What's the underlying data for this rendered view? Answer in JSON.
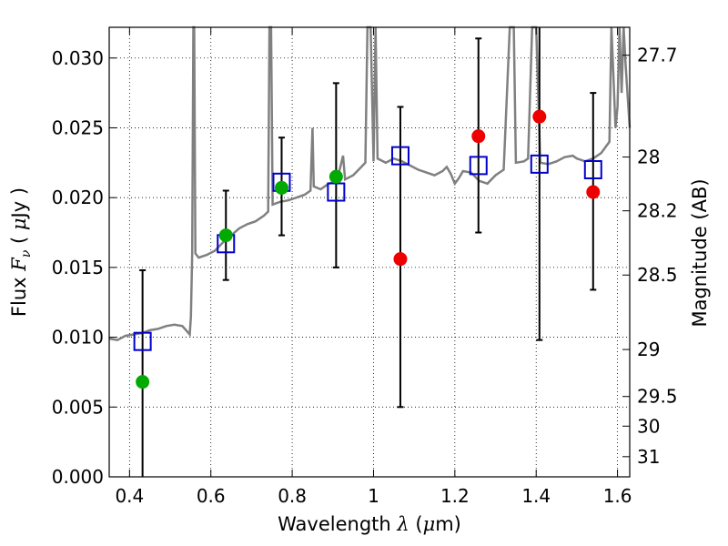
{
  "chart_data": {
    "type": "scatter",
    "xlabel": "Wavelength  λ (μm)",
    "xlabel_parts": {
      "text": "Wavelength  ",
      "symbol": "λ",
      "unit_open": " (",
      "mu": "μ",
      "unit_close": "m)"
    },
    "ylabel": "Flux  Fν  ( μJy )",
    "ylabel_parts": {
      "text": "Flux  ",
      "symbol": "F",
      "subscript": "ν",
      "unit_open": "  ( ",
      "mu": "μ",
      "unit_close": "Jy )"
    },
    "y2label": "Magnitude (AB)",
    "xlim": [
      0.35,
      1.63
    ],
    "ylim": [
      0,
      0.0322
    ],
    "grid": true,
    "x_ticks": [
      {
        "value": 0.4,
        "label": "0.4"
      },
      {
        "value": 0.6,
        "label": "0.6"
      },
      {
        "value": 0.8,
        "label": "0.8"
      },
      {
        "value": 1.0,
        "label": "1"
      },
      {
        "value": 1.2,
        "label": "1.2"
      },
      {
        "value": 1.4,
        "label": "1.4"
      },
      {
        "value": 1.6,
        "label": "1.6"
      }
    ],
    "y_ticks": [
      {
        "value": 0.0,
        "label": "0.000"
      },
      {
        "value": 0.005,
        "label": "0.005"
      },
      {
        "value": 0.01,
        "label": "0.010"
      },
      {
        "value": 0.015,
        "label": "0.015"
      },
      {
        "value": 0.02,
        "label": "0.020"
      },
      {
        "value": 0.025,
        "label": "0.025"
      },
      {
        "value": 0.03,
        "label": "0.030"
      }
    ],
    "y2_ticks": [
      {
        "value": 27.7,
        "label": "27.7"
      },
      {
        "value": 28,
        "label": "28"
      },
      {
        "value": 28.2,
        "label": "28.2"
      },
      {
        "value": 28.5,
        "label": "28.5"
      },
      {
        "value": 29,
        "label": "29"
      },
      {
        "value": 29.5,
        "label": "29.5"
      },
      {
        "value": 30,
        "label": "30"
      },
      {
        "value": 31,
        "label": "31"
      }
    ],
    "sed_model": {
      "color": "#808080",
      "points": [
        [
          0.35,
          0.0099
        ],
        [
          0.37,
          0.0098
        ],
        [
          0.39,
          0.0101
        ],
        [
          0.41,
          0.0102
        ],
        [
          0.43,
          0.0103
        ],
        [
          0.45,
          0.0105
        ],
        [
          0.47,
          0.0106
        ],
        [
          0.49,
          0.0108
        ],
        [
          0.51,
          0.0109
        ],
        [
          0.53,
          0.0108
        ],
        [
          0.548,
          0.0102
        ],
        [
          0.551,
          0.0115
        ],
        [
          0.554,
          0.016
        ],
        [
          0.557,
          0.0322
        ],
        [
          0.559,
          0.0322
        ],
        [
          0.562,
          0.016
        ],
        [
          0.57,
          0.0157
        ],
        [
          0.59,
          0.0159
        ],
        [
          0.61,
          0.0162
        ],
        [
          0.63,
          0.0168
        ],
        [
          0.65,
          0.0173
        ],
        [
          0.67,
          0.0178
        ],
        [
          0.69,
          0.0181
        ],
        [
          0.71,
          0.0183
        ],
        [
          0.73,
          0.0187
        ],
        [
          0.741,
          0.019
        ],
        [
          0.744,
          0.0322
        ],
        [
          0.748,
          0.0322
        ],
        [
          0.752,
          0.0195
        ],
        [
          0.77,
          0.0197
        ],
        [
          0.79,
          0.0198
        ],
        [
          0.81,
          0.02
        ],
        [
          0.83,
          0.0202
        ],
        [
          0.845,
          0.0205
        ],
        [
          0.85,
          0.025
        ],
        [
          0.853,
          0.0208
        ],
        [
          0.87,
          0.0206
        ],
        [
          0.89,
          0.021
        ],
        [
          0.91,
          0.0212
        ],
        [
          0.925,
          0.023
        ],
        [
          0.93,
          0.0213
        ],
        [
          0.95,
          0.0216
        ],
        [
          0.97,
          0.0222
        ],
        [
          0.98,
          0.0225
        ],
        [
          0.985,
          0.0322
        ],
        [
          0.993,
          0.0322
        ],
        [
          1.0,
          0.0226
        ],
        [
          1.005,
          0.0322
        ],
        [
          1.01,
          0.0228
        ],
        [
          1.03,
          0.0225
        ],
        [
          1.05,
          0.0228
        ],
        [
          1.07,
          0.0226
        ],
        [
          1.09,
          0.0223
        ],
        [
          1.11,
          0.022
        ],
        [
          1.13,
          0.0218
        ],
        [
          1.15,
          0.0216
        ],
        [
          1.17,
          0.0219
        ],
        [
          1.18,
          0.0222
        ],
        [
          1.19,
          0.0217
        ],
        [
          1.2,
          0.021
        ],
        [
          1.21,
          0.0214
        ],
        [
          1.22,
          0.0219
        ],
        [
          1.24,
          0.0218
        ],
        [
          1.26,
          0.0212
        ],
        [
          1.28,
          0.021
        ],
        [
          1.3,
          0.0216
        ],
        [
          1.32,
          0.022
        ],
        [
          1.335,
          0.0322
        ],
        [
          1.345,
          0.0322
        ],
        [
          1.35,
          0.0225
        ],
        [
          1.37,
          0.0226
        ],
        [
          1.38,
          0.0228
        ],
        [
          1.39,
          0.0322
        ],
        [
          1.4,
          0.0322
        ],
        [
          1.41,
          0.0225
        ],
        [
          1.43,
          0.0224
        ],
        [
          1.45,
          0.0226
        ],
        [
          1.47,
          0.0229
        ],
        [
          1.49,
          0.023
        ],
        [
          1.5,
          0.0228
        ],
        [
          1.52,
          0.0226
        ],
        [
          1.54,
          0.0228
        ],
        [
          1.56,
          0.0232
        ],
        [
          1.58,
          0.024
        ],
        [
          1.585,
          0.0322
        ],
        [
          1.595,
          0.025
        ],
        [
          1.6,
          0.0265
        ],
        [
          1.605,
          0.0322
        ],
        [
          1.61,
          0.0275
        ],
        [
          1.615,
          0.0322
        ],
        [
          1.62,
          0.0295
        ],
        [
          1.63,
          0.025
        ]
      ]
    },
    "model_points": {
      "marker": "open-square",
      "color": "#0000cc",
      "x": [
        0.432,
        0.637,
        0.774,
        0.908,
        1.066,
        1.258,
        1.408,
        1.54
      ],
      "y": [
        0.0097,
        0.0167,
        0.0211,
        0.0204,
        0.023,
        0.0223,
        0.0224,
        0.022
      ]
    },
    "detections": {
      "marker": "filled-circle",
      "color": "#00aa00",
      "x": [
        0.432,
        0.637,
        0.774,
        0.908
      ],
      "y": [
        0.0068,
        0.0173,
        0.0207,
        0.0215
      ],
      "err_low": [
        0.0068,
        0.0032,
        0.0034,
        0.0065
      ],
      "err_high": [
        0.008,
        0.0032,
        0.0036,
        0.0067
      ]
    },
    "upper_limits": {
      "marker": "filled-circle",
      "color": "#ee0000",
      "x": [
        1.066,
        1.258,
        1.408,
        1.54
      ],
      "y": [
        0.0156,
        0.0244,
        0.0258,
        0.0204
      ],
      "err_low": [
        0.0106,
        0.0069,
        0.016,
        0.007
      ],
      "err_high": [
        0.0109,
        0.007,
        0.007,
        0.0071
      ]
    }
  }
}
